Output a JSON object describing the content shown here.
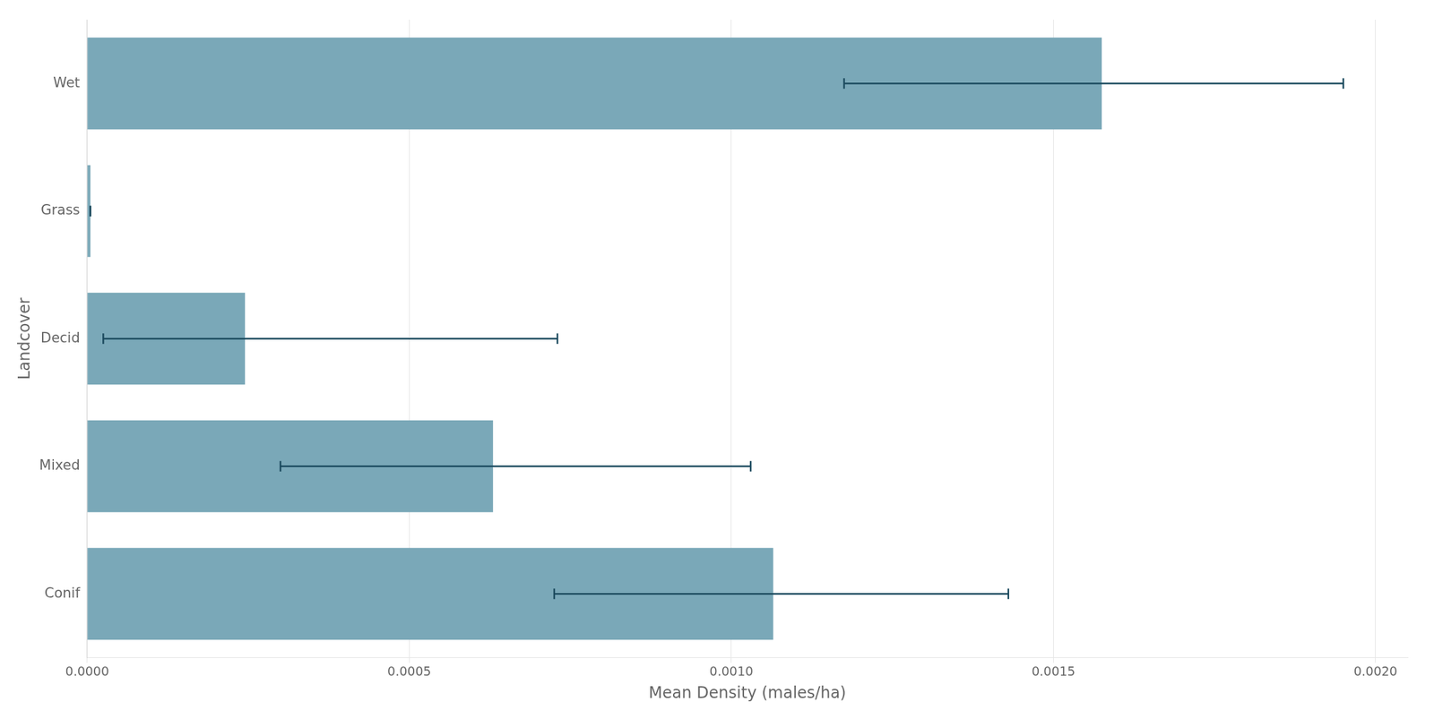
{
  "chart_data": {
    "type": "bar",
    "orientation": "horizontal",
    "categories": [
      "Wet",
      "Grass",
      "Decid",
      "Mixed",
      "Conif"
    ],
    "values": [
      0.001575,
      5e-06,
      0.000245,
      0.00063,
      0.001065
    ],
    "error_mean": [
      0.001175,
      5e-06,
      2.5e-05,
      0.0003,
      0.000725
    ],
    "error_lo": [
      0.001175,
      5e-06,
      2.5e-05,
      0.0003,
      0.000725
    ],
    "error_hi": [
      0.00195,
      5e-06,
      0.00073,
      0.00103,
      0.00143
    ],
    "color": "#7aa8b8",
    "error_color": "#1b4a5e",
    "xlabel": "Mean Density (males/ha)",
    "ylabel": "Landcover",
    "xlim": [
      0.0,
      0.00205
    ],
    "xticks": [
      {
        "value": 0.0,
        "label": "0.0000"
      },
      {
        "value": 0.0005,
        "label": "0.0005"
      },
      {
        "value": 0.001,
        "label": "0.0010"
      },
      {
        "value": 0.0015,
        "label": "0.0015"
      },
      {
        "value": 0.002,
        "label": "0.0020"
      }
    ],
    "grid": true
  }
}
